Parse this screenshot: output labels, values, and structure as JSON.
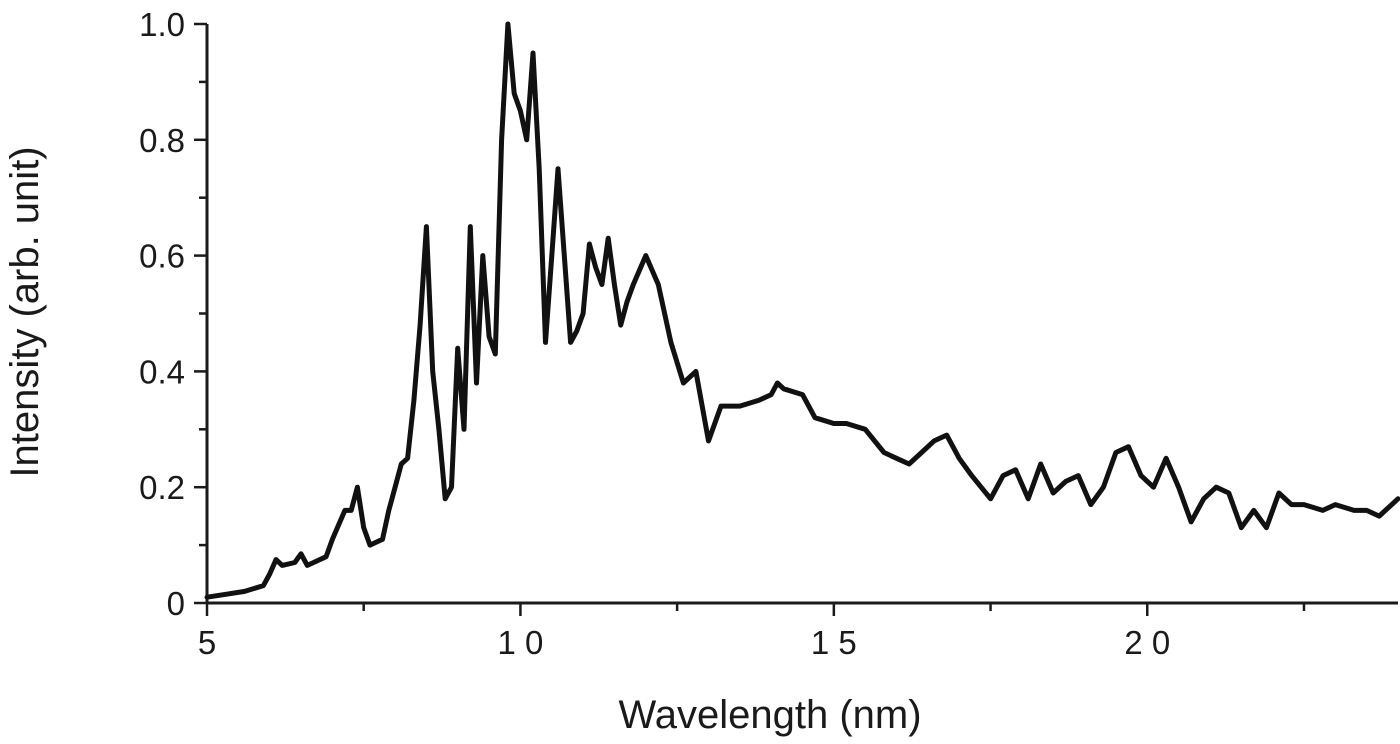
{
  "chart_data": {
    "type": "line",
    "title": "",
    "xlabel": "Wavelength (nm)",
    "ylabel": "Intensity (arb. unit)",
    "xlim": [
      5,
      24
    ],
    "ylim": [
      0,
      1.0
    ],
    "x_ticks": [
      5,
      10,
      15,
      20
    ],
    "x_tick_labels": [
      "5",
      "1 0",
      "1 5",
      "2 0"
    ],
    "x_minor_ticks": [
      7.5,
      12.5,
      17.5,
      22.5
    ],
    "y_ticks": [
      0,
      0.2,
      0.4,
      0.6,
      0.8,
      1.0
    ],
    "y_tick_labels": [
      "0",
      "0.2",
      "0.4",
      "0.6",
      "0.8",
      "1.0"
    ],
    "y_minor_ticks": [
      0.1,
      0.3,
      0.5,
      0.7,
      0.9
    ],
    "grid": false,
    "legend": "none",
    "series": [
      {
        "color": "#111111",
        "x": [
          5.0,
          5.3,
          5.6,
          5.9,
          6.0,
          6.1,
          6.2,
          6.4,
          6.5,
          6.6,
          6.7,
          6.9,
          7.0,
          7.2,
          7.3,
          7.4,
          7.5,
          7.6,
          7.8,
          7.9,
          8.0,
          8.1,
          8.2,
          8.3,
          8.4,
          8.5,
          8.6,
          8.7,
          8.8,
          8.9,
          9.0,
          9.1,
          9.2,
          9.3,
          9.4,
          9.5,
          9.6,
          9.7,
          9.8,
          9.9,
          10.0,
          10.1,
          10.2,
          10.3,
          10.4,
          10.5,
          10.6,
          10.7,
          10.8,
          10.9,
          11.0,
          11.1,
          11.2,
          11.3,
          11.4,
          11.5,
          11.6,
          11.7,
          11.8,
          12.0,
          12.2,
          12.4,
          12.6,
          12.8,
          13.0,
          13.2,
          13.5,
          13.8,
          14.0,
          14.1,
          14.2,
          14.5,
          14.7,
          15.0,
          15.2,
          15.5,
          15.8,
          16.0,
          16.2,
          16.4,
          16.6,
          16.8,
          17.0,
          17.2,
          17.5,
          17.7,
          17.9,
          18.1,
          18.3,
          18.5,
          18.7,
          18.9,
          19.1,
          19.3,
          19.5,
          19.7,
          19.9,
          20.1,
          20.3,
          20.5,
          20.7,
          20.9,
          21.1,
          21.3,
          21.5,
          21.7,
          21.9,
          22.1,
          22.3,
          22.5,
          22.8,
          23.0,
          23.3,
          23.5,
          23.7,
          24.0
        ],
        "values": [
          0.01,
          0.015,
          0.02,
          0.03,
          0.05,
          0.075,
          0.065,
          0.07,
          0.085,
          0.065,
          0.07,
          0.08,
          0.11,
          0.16,
          0.16,
          0.2,
          0.13,
          0.1,
          0.11,
          0.16,
          0.2,
          0.24,
          0.25,
          0.35,
          0.48,
          0.65,
          0.4,
          0.3,
          0.18,
          0.2,
          0.44,
          0.3,
          0.65,
          0.38,
          0.6,
          0.46,
          0.43,
          0.8,
          1.0,
          0.88,
          0.85,
          0.8,
          0.95,
          0.75,
          0.45,
          0.6,
          0.75,
          0.6,
          0.45,
          0.47,
          0.5,
          0.62,
          0.58,
          0.55,
          0.63,
          0.55,
          0.48,
          0.52,
          0.55,
          0.6,
          0.55,
          0.45,
          0.38,
          0.4,
          0.28,
          0.34,
          0.34,
          0.35,
          0.36,
          0.38,
          0.37,
          0.36,
          0.32,
          0.31,
          0.31,
          0.3,
          0.26,
          0.25,
          0.24,
          0.26,
          0.28,
          0.29,
          0.25,
          0.22,
          0.18,
          0.22,
          0.23,
          0.18,
          0.24,
          0.19,
          0.21,
          0.22,
          0.17,
          0.2,
          0.26,
          0.27,
          0.22,
          0.2,
          0.25,
          0.2,
          0.14,
          0.18,
          0.2,
          0.19,
          0.13,
          0.16,
          0.13,
          0.19,
          0.17,
          0.17,
          0.16,
          0.17,
          0.16,
          0.16,
          0.15,
          0.18
        ]
      }
    ]
  }
}
